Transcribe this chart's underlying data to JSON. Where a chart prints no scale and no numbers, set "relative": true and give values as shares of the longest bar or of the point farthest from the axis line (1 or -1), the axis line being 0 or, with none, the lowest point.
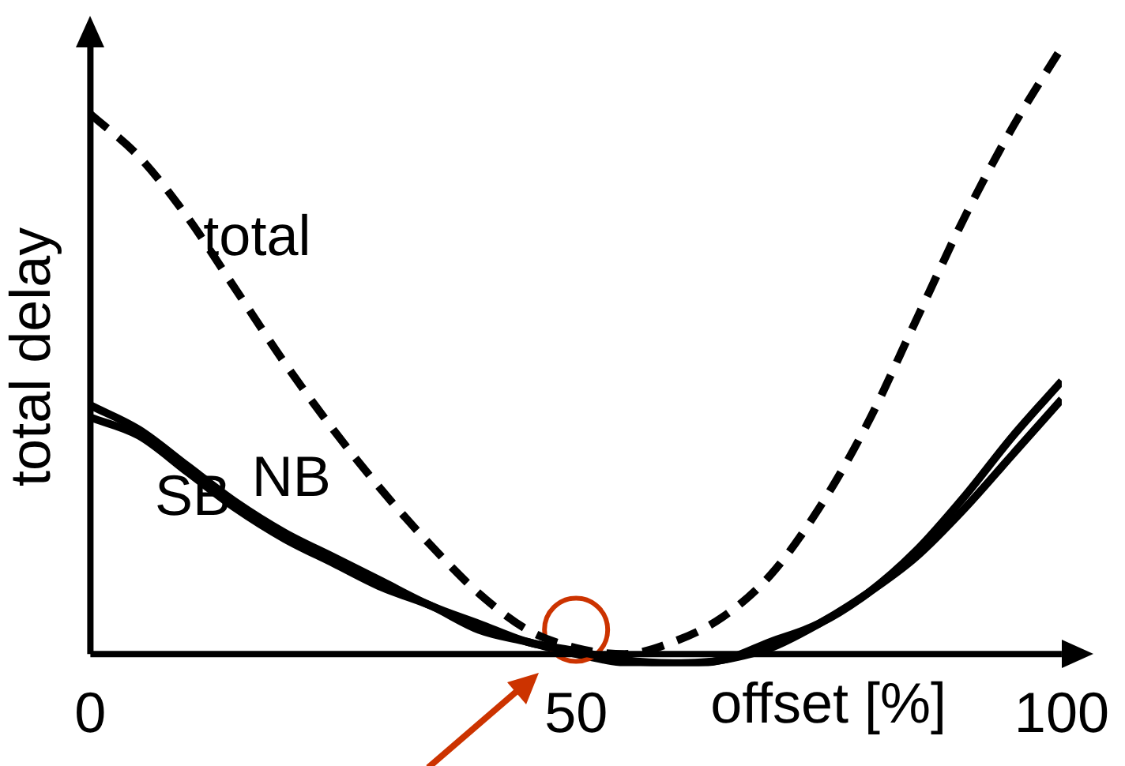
{
  "chart_data": {
    "type": "line",
    "relative": true,
    "xlabel": "offset [%]",
    "ylabel": "total delay",
    "x": [
      0,
      5,
      10,
      15,
      20,
      25,
      30,
      35,
      40,
      45,
      50,
      55,
      60,
      65,
      70,
      75,
      80,
      85,
      90,
      95,
      100
    ],
    "xlim": [
      0,
      100
    ],
    "xticks": [
      0,
      50,
      100
    ],
    "legend": false,
    "grid": false,
    "marker": "none",
    "series": [
      {
        "name": "total",
        "color": "#000000",
        "line_style": "dashed",
        "values": [
          0.89,
          0.82,
          0.72,
          0.6,
          0.48,
          0.37,
          0.27,
          0.18,
          0.1,
          0.04,
          0.01,
          0,
          0.02,
          0.06,
          0.13,
          0.24,
          0.38,
          0.55,
          0.72,
          0.87,
          1
        ]
      },
      {
        "name": "NB",
        "color": "#000000",
        "line_style": "solid",
        "values": [
          0.41,
          0.37,
          0.31,
          0.25,
          0.2,
          0.16,
          0.12,
          0.08,
          0.05,
          0.02,
          0.005,
          -0.01,
          -0.015,
          -0.01,
          0.02,
          0.05,
          0.1,
          0.17,
          0.26,
          0.36,
          0.45
        ]
      },
      {
        "type": "scatter",
        "color": "#cc3300",
        "marker": "circle",
        "x": [
          50
        ],
        "values": [
          0.04
        ]
      },
      {
        "name": "SB",
        "color": "#000000",
        "line_style": "solid",
        "values": [
          0.39,
          0.36,
          0.3,
          0.24,
          0.19,
          0.15,
          0.11,
          0.08,
          0.04,
          0.02,
          0,
          -0.015,
          -0.02,
          -0.01,
          0.01,
          0.05,
          0.1,
          0.16,
          0.24,
          0.33,
          0.42
        ]
      }
    ]
  }
}
